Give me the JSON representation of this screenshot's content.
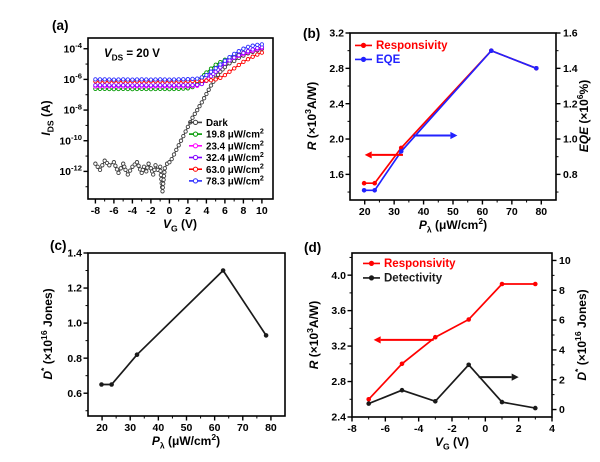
{
  "figure_background": "#ffffff",
  "chart_data": [
    {
      "id": "a",
      "panel_label": "(a)",
      "type": "line",
      "xlabel": "*V*_{G} (V)",
      "ylabel": "*I*_{DS} (A)",
      "xlim": [
        -8.8,
        11.2
      ],
      "ylim": [
        -13.8,
        -3.3
      ],
      "y_scale": "log10-exponent",
      "xticks": {
        "major": [
          {
            "v": -8,
            "l": "-8"
          },
          {
            "v": -6,
            "l": "-6"
          },
          {
            "v": -4,
            "l": "-4"
          },
          {
            "v": -2,
            "l": "-2"
          },
          {
            "v": 0,
            "l": "0"
          },
          {
            "v": 2,
            "l": "2"
          },
          {
            "v": 4,
            "l": "4"
          },
          {
            "v": 6,
            "l": "6"
          },
          {
            "v": 8,
            "l": "8"
          },
          {
            "v": 10,
            "l": "10"
          }
        ],
        "minor": [
          -7,
          -5,
          -3,
          -1,
          1,
          3,
          5,
          7,
          9
        ]
      },
      "yticks": {
        "major": [
          {
            "v": -4,
            "l": "10^{-4}"
          },
          {
            "v": -6,
            "l": "10^{-6}"
          },
          {
            "v": -8,
            "l": "10^{-8}"
          },
          {
            "v": -10,
            "l": "10^{-10}"
          },
          {
            "v": -12,
            "l": "10^{-12}"
          }
        ],
        "minor": [
          -5,
          -7,
          -9,
          -11,
          -13
        ]
      },
      "annotations": [
        {
          "type": "text",
          "text": "*V*_{DS} = 20 V",
          "color": "#000000"
        }
      ],
      "legend": {
        "items": [
          {
            "label": "Dark",
            "color": "#3f3f3f",
            "textColor": "#000000"
          },
          {
            "label": "19.8 μW/cm^{2}",
            "color": "#009900",
            "textColor": "#000000"
          },
          {
            "label": "23.4 μW/cm^{2}",
            "color": "#ff00ff",
            "textColor": "#000000"
          },
          {
            "label": "32.4 μW/cm^{2}",
            "color": "#8000ff",
            "textColor": "#000000"
          },
          {
            "label": "63.0 μW/cm^{2}",
            "color": "#ff0000",
            "textColor": "#000000"
          },
          {
            "label": "78.3 μW/cm^{2}",
            "color": "#2e2eff",
            "textColor": "#000000"
          }
        ]
      },
      "series": [
        {
          "name": "Dark",
          "color": "#3f3f3f",
          "axis": "y",
          "marker": "open",
          "x": [
            -8,
            -7.5,
            -7,
            -6.5,
            -6,
            -5.5,
            -5,
            -4.75,
            -4.5,
            -4,
            -3.5,
            -3,
            -2.75,
            -2.5,
            -2.25,
            -2,
            -1.75,
            -1.5,
            -1.25,
            -1,
            -0.75,
            -0.5,
            -0.25,
            0,
            0.25,
            0.5,
            0.75,
            1,
            1.25,
            1.5,
            2,
            2.5,
            3,
            3.5,
            4,
            4.5,
            5,
            5.5,
            6,
            6.5,
            7,
            7.5,
            8,
            8.5,
            9,
            9.5,
            10
          ],
          "y": [
            -11.5,
            -11.9,
            -11.3,
            -11.6,
            -11.4,
            -12.1,
            -11.5,
            -11.9,
            -12.2,
            -11.7,
            -11.4,
            -12.1,
            -11.7,
            -12.0,
            -11.5,
            -11.8,
            -12.2,
            -11.6,
            -11.9,
            -11.7,
            -13.3,
            -11.8,
            -11.5,
            -11.4,
            -11.2,
            -10.9,
            -10.6,
            -10.3,
            -10.0,
            -9.7,
            -9.1,
            -8.5,
            -8.0,
            -7.5,
            -6.95,
            -6.4,
            -5.9,
            -5.5,
            -5.2,
            -4.95,
            -4.8,
            -4.6,
            -4.45,
            -4.3,
            -4.2,
            -4.1,
            -4.02
          ]
        },
        {
          "name": "19.8",
          "color": "#009900",
          "axis": "y",
          "marker": "open",
          "x": [
            -8,
            -7,
            -6,
            -5,
            -4,
            -3,
            -2,
            -1,
            0,
            1,
            2,
            2.5,
            3,
            3.5,
            4,
            4.5,
            5,
            5.5,
            6,
            6.5,
            7,
            7.5,
            8,
            8.5,
            9,
            9.5,
            10
          ],
          "y": [
            -6.62,
            -6.62,
            -6.63,
            -6.62,
            -6.63,
            -6.62,
            -6.63,
            -6.62,
            -6.63,
            -6.62,
            -6.58,
            -6.5,
            -6.25,
            -5.9,
            -5.55,
            -5.3,
            -5.05,
            -4.87,
            -4.72,
            -4.58,
            -4.46,
            -4.36,
            -4.26,
            -4.17,
            -4.09,
            -4.01,
            -3.95
          ]
        },
        {
          "name": "23.4",
          "color": "#ff00ff",
          "axis": "y",
          "marker": "open",
          "x": [
            -8,
            -7,
            -6,
            -5,
            -4,
            -3,
            -2,
            -1,
            0,
            1,
            2,
            3,
            3.5,
            4,
            4.5,
            5,
            5.5,
            6,
            6.5,
            7,
            7.5,
            8,
            8.5,
            9,
            9.5,
            10
          ],
          "y": [
            -6.46,
            -6.46,
            -6.45,
            -6.46,
            -6.45,
            -6.46,
            -6.45,
            -6.46,
            -6.45,
            -6.46,
            -6.45,
            -6.42,
            -6.3,
            -6.05,
            -5.7,
            -5.4,
            -5.15,
            -4.93,
            -4.76,
            -4.6,
            -4.47,
            -4.35,
            -4.24,
            -4.14,
            -4.04,
            -3.95
          ]
        },
        {
          "name": "32.4",
          "color": "#8000ff",
          "axis": "y",
          "marker": "open",
          "x": [
            -8,
            -7,
            -6,
            -5,
            -4,
            -3,
            -2,
            -1,
            0,
            1,
            2,
            3,
            3.5,
            4,
            4.5,
            5,
            5.5,
            6,
            6.5,
            7,
            7.5,
            8,
            8.5,
            9,
            9.5,
            10
          ],
          "y": [
            -6.38,
            -6.38,
            -6.39,
            -6.38,
            -6.39,
            -6.38,
            -6.39,
            -6.38,
            -6.39,
            -6.38,
            -6.38,
            -6.36,
            -6.3,
            -6.1,
            -5.8,
            -5.5,
            -5.22,
            -4.97,
            -4.76,
            -4.58,
            -4.42,
            -4.28,
            -4.16,
            -4.05,
            -3.96,
            -3.9
          ]
        },
        {
          "name": "63.0",
          "color": "#ff0000",
          "axis": "y",
          "marker": "open",
          "x": [
            -8,
            -7,
            -6,
            -5,
            -4,
            -3,
            -2,
            -1,
            0,
            1,
            2,
            3,
            4,
            4.5,
            5,
            5.5,
            6,
            6.5,
            7,
            7.5,
            8,
            8.5,
            9,
            9.5,
            10
          ],
          "y": [
            -6.12,
            -6.12,
            -6.11,
            -6.12,
            -6.11,
            -6.12,
            -6.11,
            -6.12,
            -6.11,
            -6.12,
            -6.11,
            -6.1,
            -6.08,
            -6.05,
            -6.0,
            -5.9,
            -5.72,
            -5.5,
            -5.28,
            -5.06,
            -4.86,
            -4.68,
            -4.52,
            -4.38,
            -4.25
          ]
        },
        {
          "name": "78.3",
          "color": "#2e2eff",
          "axis": "y",
          "marker": "open",
          "x": [
            -8,
            -7,
            -6,
            -5,
            -4,
            -3,
            -2,
            -1,
            0,
            1,
            2,
            3,
            3.5,
            4,
            4.5,
            5,
            5.5,
            6,
            6.5,
            7,
            7.5,
            8,
            8.5,
            9,
            9.5,
            10
          ],
          "y": [
            -6.0,
            -6.0,
            -6.01,
            -6.0,
            -6.01,
            -6.0,
            -6.01,
            -6.0,
            -6.01,
            -6.0,
            -5.99,
            -5.95,
            -5.87,
            -5.72,
            -5.5,
            -5.27,
            -5.03,
            -4.78,
            -4.55,
            -4.34,
            -4.16,
            -4.0,
            -3.88,
            -3.8,
            -3.75,
            -3.72
          ]
        }
      ]
    },
    {
      "id": "b",
      "panel_label": "(b)",
      "type": "line",
      "xlabel": "*P*_{λ} (μW/cm^{2})",
      "ylabel": "*R* (×10^{3}A/W)",
      "y2label": "*EQE* (×10^{6}%)",
      "xlim": [
        15,
        85
      ],
      "ylim": [
        1.31,
        3.2
      ],
      "y2lim": [
        0.655,
        1.6
      ],
      "xticks": {
        "major": [
          {
            "v": 20,
            "l": "20"
          },
          {
            "v": 30,
            "l": "30"
          },
          {
            "v": 40,
            "l": "40"
          },
          {
            "v": 50,
            "l": "50"
          },
          {
            "v": 60,
            "l": "60"
          },
          {
            "v": 70,
            "l": "70"
          },
          {
            "v": 80,
            "l": "80"
          }
        ],
        "minor": [
          25,
          35,
          45,
          55,
          65,
          75
        ]
      },
      "yticks": {
        "major": [
          {
            "v": 1.6,
            "l": "1.6"
          },
          {
            "v": 2.0,
            "l": "2.0"
          },
          {
            "v": 2.4,
            "l": "2.4"
          },
          {
            "v": 2.8,
            "l": "2.8"
          },
          {
            "v": 3.2,
            "l": "3.2"
          }
        ],
        "minor": [
          1.4,
          1.8,
          2.2,
          2.6,
          3.0
        ]
      },
      "y2ticks": {
        "major": [
          {
            "v": 0.8,
            "l": "0.8"
          },
          {
            "v": 1.0,
            "l": "1.0"
          },
          {
            "v": 1.2,
            "l": "1.2"
          },
          {
            "v": 1.4,
            "l": "1.4"
          },
          {
            "v": 1.6,
            "l": "1.6"
          }
        ],
        "minor": [
          0.7,
          0.9,
          1.1,
          1.3,
          1.5
        ]
      },
      "legend": {
        "items": [
          {
            "label": "Responsivity",
            "color": "#ff0000",
            "textColor": "#ff0000"
          },
          {
            "label": "EQE",
            "color": "#2222ff",
            "textColor": "#2222ff"
          }
        ]
      },
      "annotations": [
        {
          "type": "arrow",
          "color": "#ff0000",
          "axis": "y",
          "from": [
            33,
            1.82
          ],
          "to": [
            20,
            1.82
          ]
        },
        {
          "type": "arrow",
          "color": "#2222ff",
          "axis": "y",
          "from": [
            36.5,
            2.04
          ],
          "to": [
            51.5,
            2.04
          ]
        }
      ],
      "series": [
        {
          "name": "Responsivity",
          "color": "#ff0000",
          "axis": "y",
          "marker": "dot",
          "x": [
            19.8,
            23.4,
            32.4,
            63.0,
            78.3
          ],
          "y": [
            1.5,
            1.5,
            1.9,
            3.0,
            2.8
          ]
        },
        {
          "name": "EQE",
          "color": "#2222ff",
          "axis": "y2",
          "marker": "dot",
          "x": [
            19.8,
            23.4,
            32.4,
            63.0,
            78.3
          ],
          "y": [
            0.71,
            0.71,
            0.93,
            1.5,
            1.4
          ]
        }
      ]
    },
    {
      "id": "c",
      "panel_label": "(c)",
      "type": "line",
      "xlabel": "*P*_{λ} (μW/cm^{2})",
      "ylabel": "*D*^{*} (×10^{16} Jones)",
      "xlim": [
        15,
        85
      ],
      "ylim": [
        0.47,
        1.4
      ],
      "xticks": {
        "major": [
          {
            "v": 20,
            "l": "20"
          },
          {
            "v": 30,
            "l": "30"
          },
          {
            "v": 40,
            "l": "40"
          },
          {
            "v": 50,
            "l": "50"
          },
          {
            "v": 60,
            "l": "60"
          },
          {
            "v": 70,
            "l": "70"
          },
          {
            "v": 80,
            "l": "80"
          }
        ],
        "minor": [
          25,
          35,
          45,
          55,
          65,
          75
        ]
      },
      "yticks": {
        "major": [
          {
            "v": 0.6,
            "l": "0.6"
          },
          {
            "v": 0.8,
            "l": "0.8"
          },
          {
            "v": 1.0,
            "l": "1.0"
          },
          {
            "v": 1.2,
            "l": "1.2"
          },
          {
            "v": 1.4,
            "l": "1.4"
          }
        ],
        "minor": [
          0.5,
          0.7,
          0.9,
          1.1,
          1.3
        ]
      },
      "annotations": [],
      "series": [
        {
          "name": "Detectivity",
          "color": "#1a1a1a",
          "axis": "y",
          "marker": "dot",
          "x": [
            19.8,
            23.4,
            32.4,
            63.0,
            78.3
          ],
          "y": [
            0.65,
            0.65,
            0.82,
            1.3,
            0.93
          ]
        }
      ]
    },
    {
      "id": "d",
      "panel_label": "(d)",
      "type": "line",
      "xlabel": "*V*_{G} (V)",
      "ylabel": "*R* (×10^{3}A/W)",
      "y2label": "*D*^{*} (×10^{16} Jones)",
      "xlim": [
        -8,
        4
      ],
      "ylim": [
        2.4,
        4.25
      ],
      "y2lim": [
        -0.5,
        10.5
      ],
      "xticks": {
        "major": [
          {
            "v": -8,
            "l": "-8"
          },
          {
            "v": -6,
            "l": "-6"
          },
          {
            "v": -4,
            "l": "-4"
          },
          {
            "v": -2,
            "l": "-2"
          },
          {
            "v": 0,
            "l": "0"
          },
          {
            "v": 2,
            "l": "2"
          },
          {
            "v": 4,
            "l": "4"
          }
        ],
        "minor": [
          -7,
          -5,
          -3,
          -1,
          1,
          3
        ]
      },
      "yticks": {
        "major": [
          {
            "v": 2.4,
            "l": "2.4"
          },
          {
            "v": 2.8,
            "l": "2.8"
          },
          {
            "v": 3.2,
            "l": "3.2"
          },
          {
            "v": 3.6,
            "l": "3.6"
          },
          {
            "v": 4.0,
            "l": "4.0"
          }
        ],
        "minor": [
          2.6,
          3.0,
          3.4,
          3.8,
          4.2
        ]
      },
      "y2ticks": {
        "major": [
          {
            "v": 0,
            "l": "0"
          },
          {
            "v": 2,
            "l": "2"
          },
          {
            "v": 4,
            "l": "4"
          },
          {
            "v": 6,
            "l": "6"
          },
          {
            "v": 8,
            "l": "8"
          },
          {
            "v": 10,
            "l": "10"
          }
        ],
        "minor": [
          1,
          3,
          5,
          7,
          9
        ]
      },
      "legend": {
        "items": [
          {
            "label": "Responsivity",
            "color": "#ff0000",
            "textColor": "#ff0000"
          },
          {
            "label": "Detectivity",
            "color": "#1a1a1a",
            "textColor": "#1a1a1a"
          }
        ]
      },
      "annotations": [
        {
          "type": "arrow",
          "color": "#ff0000",
          "axis": "y",
          "from": [
            -3.1,
            3.27
          ],
          "to": [
            -6.7,
            3.27
          ]
        },
        {
          "type": "arrow",
          "color": "#1a1a1a",
          "axis": "y",
          "from": [
            -0.4,
            2.85
          ],
          "to": [
            2.0,
            2.85
          ]
        }
      ],
      "series": [
        {
          "name": "Responsivity",
          "color": "#ff0000",
          "axis": "y",
          "marker": "dot",
          "x": [
            -7,
            -5,
            -3,
            -1,
            1,
            3
          ],
          "y": [
            2.6,
            3.0,
            3.3,
            3.5,
            3.9,
            3.9
          ]
        },
        {
          "name": "Detectivity",
          "color": "#1a1a1a",
          "axis": "y2",
          "marker": "dot",
          "x": [
            -7,
            -5,
            -3,
            -1,
            1,
            3
          ],
          "y": [
            0.4,
            1.3,
            0.55,
            3.0,
            0.5,
            0.1
          ]
        }
      ]
    }
  ]
}
